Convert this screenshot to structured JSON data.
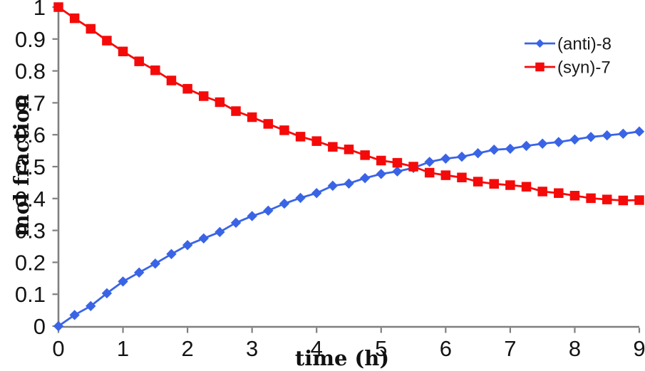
{
  "chart_data": {
    "type": "line",
    "title": "",
    "xlabel": "time (h)",
    "ylabel": "mol fraction",
    "xlim": [
      0,
      9
    ],
    "ylim": [
      0,
      1
    ],
    "grid": false,
    "legend": {
      "position": "upper-right",
      "border": false
    },
    "axis_color": "#7f7f7f",
    "text_color": "#141414",
    "xticks": {
      "values": [
        0,
        1,
        2,
        3,
        4,
        5,
        6,
        7,
        8,
        9
      ],
      "labels": [
        "0",
        "1",
        "2",
        "3",
        "4",
        "5",
        "6",
        "7",
        "8",
        "9"
      ]
    },
    "yticks": {
      "values": [
        0,
        0.1,
        0.2,
        0.3,
        0.4,
        0.5,
        0.6,
        0.7,
        0.8,
        0.9,
        1
      ],
      "labels": [
        "0",
        "0.1",
        "0.2",
        "0.3",
        "0.4",
        "0.5",
        "0.6",
        "0.7",
        "0.8",
        "0.9",
        "1"
      ]
    },
    "x": [
      0,
      0.25,
      0.5,
      0.75,
      1,
      1.25,
      1.5,
      1.75,
      2,
      2.25,
      2.5,
      2.75,
      3,
      3.25,
      3.5,
      3.75,
      4,
      4.25,
      4.5,
      4.75,
      5,
      5.25,
      5.5,
      5.75,
      6,
      6.25,
      6.5,
      6.75,
      7,
      7.25,
      7.5,
      7.75,
      8,
      8.25,
      8.5,
      8.75,
      9
    ],
    "series": [
      {
        "name": "(anti)-8",
        "color": "#3a64e6",
        "marker": "diamond",
        "values": [
          0,
          0.035,
          0.063,
          0.103,
          0.14,
          0.168,
          0.196,
          0.226,
          0.254,
          0.275,
          0.295,
          0.324,
          0.345,
          0.362,
          0.384,
          0.402,
          0.417,
          0.44,
          0.447,
          0.464,
          0.477,
          0.485,
          0.496,
          0.515,
          0.525,
          0.531,
          0.542,
          0.553,
          0.556,
          0.565,
          0.572,
          0.577,
          0.585,
          0.593,
          0.598,
          0.603,
          0.61
        ]
      },
      {
        "name": "(syn)-7",
        "color": "#f50a0a",
        "marker": "square",
        "values": [
          1,
          0.965,
          0.932,
          0.895,
          0.861,
          0.83,
          0.802,
          0.77,
          0.744,
          0.721,
          0.702,
          0.674,
          0.655,
          0.634,
          0.614,
          0.594,
          0.58,
          0.562,
          0.554,
          0.536,
          0.519,
          0.512,
          0.5,
          0.481,
          0.473,
          0.466,
          0.453,
          0.446,
          0.442,
          0.437,
          0.422,
          0.417,
          0.409,
          0.401,
          0.397,
          0.394,
          0.395
        ]
      }
    ]
  }
}
